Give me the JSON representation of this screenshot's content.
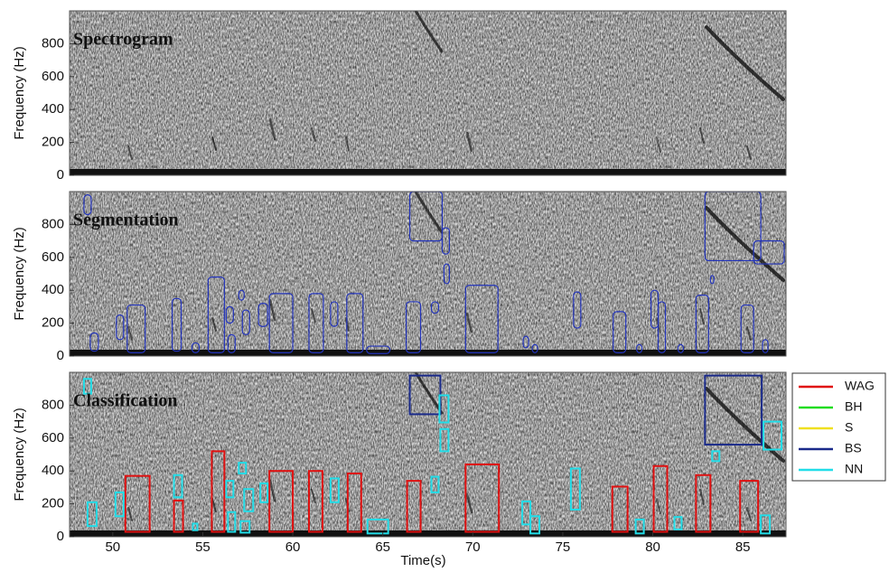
{
  "chart_data": [
    {
      "type": "spectrogram",
      "title": "Spectrogram",
      "y_label": "Frequency (Hz)",
      "xlim": [
        47.6,
        87.4
      ],
      "ylim": [
        0,
        1000
      ],
      "yticks": [
        0,
        200,
        400,
        600,
        800
      ]
    },
    {
      "type": "segmentation",
      "title": "Segmentation",
      "y_label": "Frequency (Hz)",
      "xlim": [
        47.6,
        87.4
      ],
      "ylim": [
        0,
        1000
      ],
      "yticks": [
        0,
        200,
        400,
        600,
        800
      ],
      "color": "#2233bb",
      "regions": [
        [
          48.4,
          48.8,
          860,
          980
        ],
        [
          48.75,
          49.2,
          30,
          140
        ],
        [
          50.2,
          50.6,
          100,
          250
        ],
        [
          50.8,
          51.8,
          20,
          310
        ],
        [
          53.3,
          53.8,
          30,
          350
        ],
        [
          54.4,
          54.8,
          20,
          80
        ],
        [
          55.3,
          56.2,
          20,
          480
        ],
        [
          56.3,
          56.7,
          200,
          300
        ],
        [
          56.4,
          56.8,
          20,
          130
        ],
        [
          57.0,
          57.3,
          340,
          400
        ],
        [
          57.2,
          57.6,
          130,
          280
        ],
        [
          58.1,
          58.6,
          180,
          320
        ],
        [
          58.7,
          60.0,
          20,
          380
        ],
        [
          60.9,
          61.7,
          20,
          380
        ],
        [
          62.1,
          62.5,
          180,
          330
        ],
        [
          63.0,
          63.9,
          20,
          380
        ],
        [
          64.1,
          65.4,
          15,
          60
        ],
        [
          66.3,
          67.1,
          20,
          330
        ],
        [
          66.5,
          68.3,
          700,
          1000
        ],
        [
          67.7,
          68.1,
          260,
          330
        ],
        [
          68.3,
          68.7,
          620,
          780
        ],
        [
          68.4,
          68.7,
          440,
          560
        ],
        [
          69.6,
          71.4,
          20,
          430
        ],
        [
          72.8,
          73.1,
          50,
          120
        ],
        [
          73.3,
          73.6,
          20,
          70
        ],
        [
          75.6,
          76.0,
          170,
          390
        ],
        [
          77.8,
          78.5,
          20,
          270
        ],
        [
          79.1,
          79.4,
          20,
          70
        ],
        [
          79.9,
          80.3,
          170,
          400
        ],
        [
          80.3,
          80.7,
          20,
          330
        ],
        [
          81.4,
          81.7,
          20,
          70
        ],
        [
          82.4,
          83.1,
          20,
          370
        ],
        [
          83.2,
          83.4,
          440,
          490
        ],
        [
          82.9,
          86.0,
          580,
          1000
        ],
        [
          84.9,
          85.6,
          20,
          310
        ],
        [
          85.6,
          87.3,
          560,
          700
        ],
        [
          86.1,
          86.4,
          20,
          100
        ]
      ]
    },
    {
      "type": "classification",
      "title": "Classification",
      "y_label": "Frequency (Hz)",
      "x_label": "Time(s)",
      "xlim": [
        47.6,
        87.4
      ],
      "ylim": [
        0,
        1000
      ],
      "yticks": [
        0,
        200,
        400,
        600,
        800
      ],
      "xticks": [
        50,
        55,
        60,
        65,
        70,
        75,
        80,
        85
      ],
      "series": [
        {
          "name": "WAG",
          "color": "#e01010",
          "boxes": [
            [
              50.7,
              52.05,
              30,
              370
            ],
            [
              53.4,
              53.9,
              30,
              220
            ],
            [
              55.5,
              56.2,
              30,
              520
            ],
            [
              58.7,
              60.0,
              30,
              400
            ],
            [
              60.9,
              61.65,
              30,
              400
            ],
            [
              63.05,
              63.8,
              30,
              385
            ],
            [
              66.35,
              67.1,
              30,
              340
            ],
            [
              69.6,
              71.45,
              30,
              440
            ],
            [
              77.75,
              78.6,
              30,
              305
            ],
            [
              80.05,
              80.8,
              30,
              430
            ],
            [
              82.4,
              83.2,
              30,
              375
            ],
            [
              84.85,
              85.85,
              30,
              340
            ]
          ]
        },
        {
          "name": "BH",
          "color": "#22dd22",
          "boxes": []
        },
        {
          "name": "S",
          "color": "#f0e020",
          "boxes": []
        },
        {
          "name": "BS",
          "color": "#1a2a8a",
          "boxes": [
            [
              66.5,
              68.2,
              745,
              980
            ],
            [
              82.9,
              86.05,
              560,
              980
            ]
          ]
        },
        {
          "name": "NN",
          "color": "#22dde8",
          "boxes": [
            [
              48.4,
              48.8,
              870,
              960
            ],
            [
              48.6,
              49.1,
              65,
              210
            ],
            [
              50.15,
              50.6,
              125,
              270
            ],
            [
              53.4,
              53.85,
              240,
              375
            ],
            [
              54.45,
              54.7,
              40,
              80
            ],
            [
              56.3,
              56.7,
              240,
              340
            ],
            [
              56.4,
              56.8,
              30,
              150
            ],
            [
              57.0,
              57.4,
              385,
              450
            ],
            [
              57.1,
              57.6,
              25,
              95
            ],
            [
              57.3,
              57.8,
              155,
              290
            ],
            [
              58.2,
              58.6,
              210,
              325
            ],
            [
              62.1,
              62.55,
              210,
              355
            ],
            [
              64.15,
              65.3,
              20,
              105
            ],
            [
              67.7,
              68.1,
              270,
              365
            ],
            [
              68.15,
              68.65,
              695,
              860
            ],
            [
              68.2,
              68.65,
              520,
              655
            ],
            [
              72.75,
              73.2,
              75,
              215
            ],
            [
              73.2,
              73.7,
              20,
              125
            ],
            [
              75.45,
              75.95,
              165,
              415
            ],
            [
              79.05,
              79.5,
              20,
              105
            ],
            [
              81.2,
              81.6,
              45,
              120
            ],
            [
              83.3,
              83.7,
              460,
              520
            ],
            [
              86.0,
              86.5,
              20,
              130
            ],
            [
              86.15,
              87.15,
              530,
              700
            ]
          ]
        }
      ]
    }
  ]
}
